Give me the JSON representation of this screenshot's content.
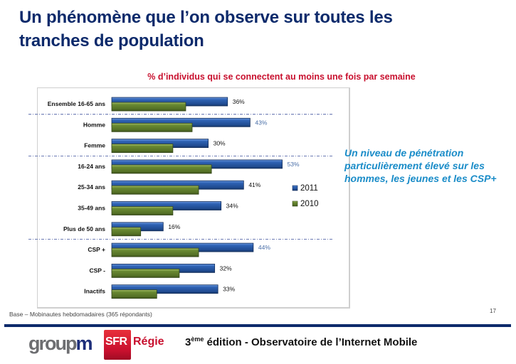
{
  "slide": {
    "title_line1": "Un phénomène que l’on observe sur toutes les",
    "title_line2": "tranches de population",
    "callout": "Un niveau de pénétration particulièrement élevé sur les hommes, les jeunes et les CSP+",
    "base_note": "Base – Mobinautes hebdomadaires (365 répondants)",
    "page_number": "17"
  },
  "footer": {
    "logo_groupm_part1": "group",
    "logo_groupm_part2": "m",
    "logo_sfr": "SFR",
    "logo_regie": "Régie",
    "edition_number": "3",
    "edition_sup": "ème",
    "edition_text": " édition - Observatoire de l’Internet Mobile"
  },
  "colors": {
    "title": "#0d2a6b",
    "subtitle": "#c8102e",
    "series_2011": "#2a5aa6",
    "series_2010": "#5a7a2a",
    "highlight_label": "#4a6fa8",
    "callout": "#1a8cc8"
  },
  "chart_data": {
    "type": "bar",
    "orientation": "horizontal",
    "title": "% d’individus qui se connectent au moins une fois par semaine",
    "xlabel": "",
    "ylabel": "",
    "xlim": [
      0,
      60
    ],
    "grid": false,
    "legend_position": "right",
    "categories": [
      "Ensemble 16-65 ans",
      "Homme",
      "Femme",
      "16-24 ans",
      "25-34 ans",
      "35-49 ans",
      "Plus de 50 ans",
      "CSP +",
      "CSP -",
      "Inactifs"
    ],
    "group_separators_after": [
      0,
      2,
      6
    ],
    "series": [
      {
        "name": "2011",
        "values": [
          36,
          43,
          30,
          53,
          41,
          34,
          16,
          44,
          32,
          33
        ],
        "labels": [
          "36%",
          "43%",
          "30%",
          "53%",
          "41%",
          "34%",
          "16%",
          "44%",
          "32%",
          "33%"
        ],
        "highlighted": [
          false,
          true,
          false,
          true,
          false,
          false,
          false,
          true,
          false,
          false
        ]
      },
      {
        "name": "2010",
        "values": [
          23,
          25,
          19,
          31,
          27,
          19,
          9,
          27,
          21,
          14
        ]
      }
    ]
  }
}
